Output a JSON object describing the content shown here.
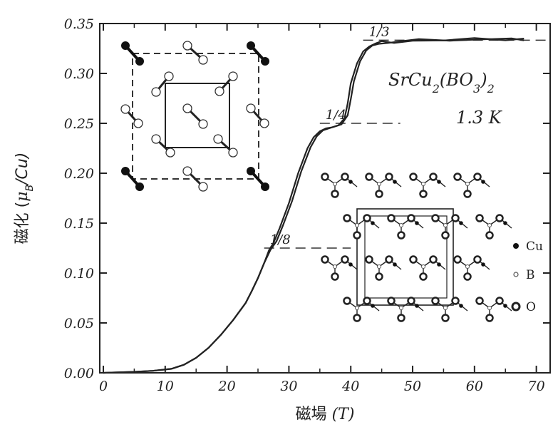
{
  "chart_data": {
    "type": "line",
    "xlabel_prefix": "磁場",
    "xlabel_unit": "(T)",
    "ylabel_prefix": "磁化 (",
    "ylabel_unit": "μ",
    "ylabel_sub": "B",
    "ylabel_tail": "/Cu)",
    "xlim": [
      0,
      72
    ],
    "ylim": [
      0,
      0.35
    ],
    "x_ticks": [
      "0",
      "10",
      "20",
      "30",
      "40",
      "50",
      "60",
      "70"
    ],
    "x_tick_values": [
      0,
      10,
      20,
      30,
      40,
      50,
      60,
      70
    ],
    "y_ticks": [
      "0.00",
      "0.05",
      "0.10",
      "0.15",
      "0.20",
      "0.25",
      "0.30",
      "0.35"
    ],
    "y_tick_values": [
      0,
      0.05,
      0.1,
      0.15,
      0.2,
      0.25,
      0.3,
      0.35
    ],
    "series": [
      {
        "values_x": [
          0,
          5,
          8,
          11,
          13,
          15,
          17,
          19,
          21,
          23,
          24,
          25,
          26,
          26.8,
          27.5,
          28.5,
          30,
          31.5,
          33,
          34,
          35,
          36,
          37,
          38,
          39,
          39.5,
          40,
          41,
          42,
          43,
          44,
          45,
          47,
          50,
          55,
          60,
          65,
          68
        ],
        "values_y": [
          0,
          0.001,
          0.002,
          0.004,
          0.008,
          0.015,
          0.025,
          0.038,
          0.053,
          0.07,
          0.082,
          0.095,
          0.11,
          0.123,
          0.13,
          0.145,
          0.17,
          0.2,
          0.225,
          0.236,
          0.242,
          0.245,
          0.246,
          0.248,
          0.255,
          0.27,
          0.29,
          0.31,
          0.322,
          0.327,
          0.33,
          0.331,
          0.332,
          0.333,
          0.334,
          0.334,
          0.334,
          0.334
        ]
      },
      {
        "values_x": [
          0,
          5,
          8,
          11,
          13,
          15,
          17,
          19,
          21,
          23,
          24,
          25,
          26,
          27,
          28,
          29,
          30.5,
          32,
          33.5,
          34.5,
          35.5,
          36.5,
          37.5,
          38.5,
          39.5,
          40,
          40.5,
          41.5,
          42.5,
          43.5,
          44.5,
          46,
          48,
          51,
          56,
          61,
          66,
          68
        ],
        "values_y": [
          0,
          0.001,
          0.002,
          0.004,
          0.008,
          0.015,
          0.025,
          0.038,
          0.053,
          0.07,
          0.082,
          0.095,
          0.11,
          0.123,
          0.132,
          0.147,
          0.172,
          0.202,
          0.226,
          0.237,
          0.243,
          0.245,
          0.247,
          0.249,
          0.258,
          0.274,
          0.292,
          0.312,
          0.323,
          0.328,
          0.33,
          0.331,
          0.332,
          0.333,
          0.334,
          0.334,
          0.334,
          0.334
        ]
      }
    ],
    "plateaus": [
      {
        "label": "1/3",
        "value": 0.3333,
        "x_from": 42,
        "x_to": 72
      },
      {
        "label": "1/4",
        "value": 0.25,
        "x_from": 35,
        "x_to": 48
      },
      {
        "label": "1/8",
        "value": 0.125,
        "x_from": 26,
        "x_to": 40
      }
    ],
    "annotation_formula": {
      "main": "SrCu",
      "sub1": "2",
      "mid": "(BO",
      "sub2": "3",
      "tail": ")",
      "sub3": "2"
    },
    "annotation_temp": "1.3 K",
    "legend": [
      {
        "label": "Cu",
        "marker": "filled-dot"
      },
      {
        "label": "B",
        "marker": "open-small-circle"
      },
      {
        "label": "O",
        "marker": "thick-ring"
      }
    ]
  }
}
